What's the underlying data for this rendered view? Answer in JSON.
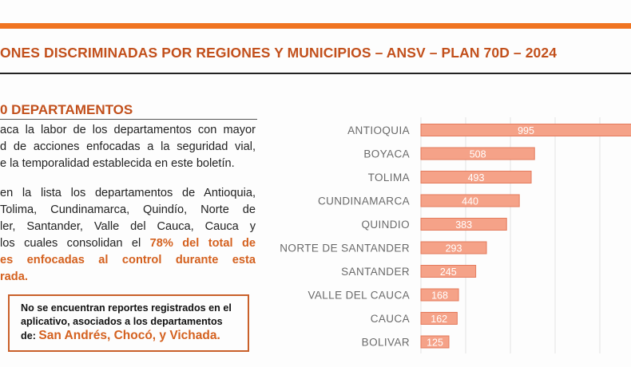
{
  "header": {
    "title": "ONES DISCRIMINADAS POR REGIONES Y MUNICIPIOS – ANSV – PLAN 70D – 2024",
    "accent": "#f07421",
    "title_color": "#c2501c"
  },
  "section": {
    "heading": "0 DEPARTAMENTOS",
    "paragraph1": [
      "aca la labor de los departamentos con mayor",
      "d de acciones enfocadas a la seguridad vial,",
      "e la temporalidad establecida en este boletín."
    ],
    "paragraph2": [
      "en la lista los departamentos de Antioquia,",
      "Tolima, Cundinamarca, Quindío, Norte de",
      "ler, Santander, Valle del Cauca, Cauca y"
    ],
    "paragraph2_line4_plain": "los cuales consolidan el ",
    "paragraph2_line4_highlight": "78% del total de",
    "paragraph2_highlight_lines": [
      "es enfocadas al control durante esta",
      "rada."
    ],
    "note": {
      "line1": "No se encuentran reportes registrados en el",
      "line2": "aplicativo, asociados a los departamentos",
      "line3_plain": "de: ",
      "line3_highlight": "San Andrés, Chocó, y Vichada."
    }
  },
  "chart_data": {
    "type": "bar",
    "orientation": "horizontal",
    "categories": [
      "ANTIOQUIA",
      "BOYACA",
      "TOLIMA",
      "CUNDINAMARCA",
      "QUINDIO",
      "NORTE DE SANTANDER",
      "SANTANDER",
      "VALLE DEL CAUCA",
      "CAUCA",
      "BOLIVAR"
    ],
    "values": [
      995,
      508,
      493,
      440,
      383,
      293,
      245,
      168,
      162,
      125
    ],
    "grid": true,
    "gridline_step": 200,
    "bar_color": "#f5a288",
    "bar_edge_color": "#e47a5c"
  }
}
